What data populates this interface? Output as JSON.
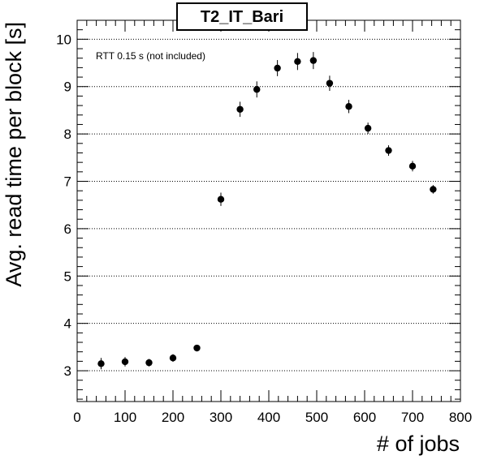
{
  "chart_data": {
    "type": "scatter",
    "title": "T2_IT_Bari",
    "xlabel": "# of jobs",
    "ylabel": "Avg. read time per block [s]",
    "annotation": "RTT 0.15 s (not included)",
    "xlim": [
      0,
      800
    ],
    "ylim": [
      2.35,
      10.4
    ],
    "x_ticks": [
      0,
      100,
      200,
      300,
      400,
      500,
      600,
      700,
      800
    ],
    "y_ticks": [
      3,
      4,
      5,
      6,
      7,
      8,
      9,
      10
    ],
    "grid": "horizontal dotted",
    "legend": "none",
    "marker_color": "#000000",
    "points": [
      {
        "x": 50,
        "y": 3.15,
        "err": 0.12
      },
      {
        "x": 100,
        "y": 3.19,
        "err": 0.1
      },
      {
        "x": 150,
        "y": 3.17,
        "err": 0.08
      },
      {
        "x": 200,
        "y": 3.27,
        "err": 0.08
      },
      {
        "x": 250,
        "y": 3.48,
        "err": 0.07
      },
      {
        "x": 300,
        "y": 6.62,
        "err": 0.14
      },
      {
        "x": 340,
        "y": 8.52,
        "err": 0.16
      },
      {
        "x": 375,
        "y": 8.94,
        "err": 0.17
      },
      {
        "x": 418,
        "y": 9.39,
        "err": 0.17
      },
      {
        "x": 460,
        "y": 9.53,
        "err": 0.18
      },
      {
        "x": 493,
        "y": 9.55,
        "err": 0.18
      },
      {
        "x": 527,
        "y": 9.07,
        "err": 0.16
      },
      {
        "x": 567,
        "y": 8.58,
        "err": 0.14
      },
      {
        "x": 607,
        "y": 8.12,
        "err": 0.12
      },
      {
        "x": 650,
        "y": 7.65,
        "err": 0.11
      },
      {
        "x": 700,
        "y": 7.32,
        "err": 0.11
      },
      {
        "x": 743,
        "y": 6.83,
        "err": 0.09
      }
    ]
  }
}
